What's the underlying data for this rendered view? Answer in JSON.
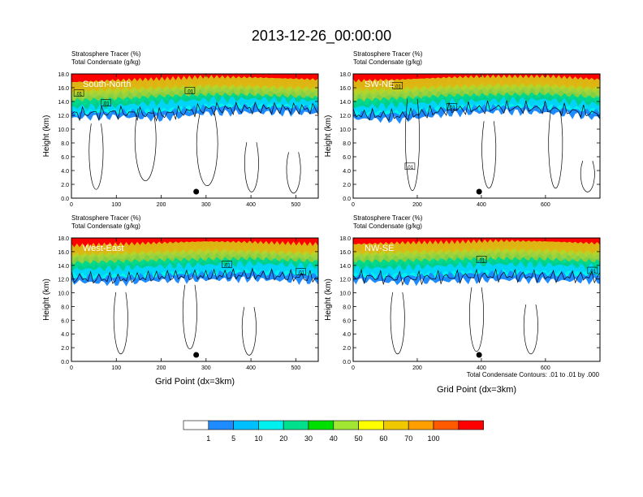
{
  "title": "2013-12-26_00:00:00",
  "label_line1": "Stratosphere Tracer   (%)",
  "label_line2": "Total Condensate   (g/kg)",
  "ylabel": "Height (km)",
  "xlabel": "Grid Point (dx=3km)",
  "contour_note": "Total Condensate Contours: .01 to .01 by .000",
  "contour_label": ".01",
  "colors": {
    "levels": [
      "#ffffff",
      "#1e8cff",
      "#00bfff",
      "#00f0f0",
      "#00e08c",
      "#00e000",
      "#a0e632",
      "#ffff00",
      "#f0c800",
      "#ffa000",
      "#ff5a00",
      "#ff0000"
    ],
    "contour": "#000000",
    "label_text": "#ffffff",
    "surface_dot": "#000000"
  },
  "chart_data": [
    {
      "type": "contour-cross-section",
      "section": "South-North",
      "xlim": [
        0,
        550
      ],
      "xticks": [
        "0",
        "100",
        "200",
        "300",
        "400",
        "500"
      ],
      "ylim": [
        0,
        18
      ],
      "yticks": [
        "0.0",
        "2.0",
        "4.0",
        "6.0",
        "8.0",
        "10.0",
        "12.0",
        "14.0",
        "16.0",
        "18.0"
      ],
      "tracer_bands_km": {
        "x": [
          0,
          100,
          200,
          300,
          400,
          550
        ],
        "c1": [
          11.6,
          11.8,
          11.5,
          12.3,
          12.4,
          12.3
        ],
        "c10": [
          12.3,
          12.5,
          12.5,
          13.2,
          13.3,
          13.1
        ],
        "c30": [
          13.2,
          13.4,
          13.9,
          14.3,
          14.4,
          14.1
        ],
        "c50": [
          14.6,
          14.8,
          15.2,
          15.4,
          15.4,
          15.0
        ],
        "c70": [
          16.0,
          16.3,
          16.5,
          16.8,
          16.7,
          16.4
        ]
      },
      "surface_point_x": 278
    },
    {
      "type": "contour-cross-section",
      "section": "SW-NE",
      "xlim": [
        0,
        770
      ],
      "xticks": [
        "0",
        "200",
        "400",
        "600"
      ],
      "ylim": [
        0,
        18
      ],
      "yticks": [
        "0.0",
        "2.0",
        "4.0",
        "6.0",
        "8.0",
        "10.0",
        "12.0",
        "14.0",
        "16.0",
        "18.0"
      ],
      "tracer_bands_km": {
        "x": [
          0,
          150,
          300,
          450,
          600,
          770
        ],
        "c1": [
          11.5,
          11.3,
          12.2,
          12.5,
          12.4,
          11.6
        ],
        "c10": [
          12.2,
          12.3,
          13.0,
          13.2,
          13.2,
          12.5
        ],
        "c30": [
          13.2,
          13.6,
          14.0,
          14.2,
          14.3,
          13.6
        ],
        "c50": [
          14.6,
          14.9,
          15.3,
          15.4,
          15.5,
          15.0
        ],
        "c70": [
          16.2,
          16.4,
          16.7,
          16.9,
          16.9,
          16.4
        ]
      },
      "surface_point_x": 393
    },
    {
      "type": "contour-cross-section",
      "section": "West-East",
      "xlim": [
        0,
        550
      ],
      "xticks": [
        "0",
        "100",
        "200",
        "300",
        "400",
        "500"
      ],
      "ylim": [
        0,
        18
      ],
      "yticks": [
        "0.0",
        "2.0",
        "4.0",
        "6.0",
        "8.0",
        "10.0",
        "12.0",
        "14.0",
        "16.0",
        "18.0"
      ],
      "tracer_bands_km": {
        "x": [
          0,
          100,
          200,
          300,
          400,
          550
        ],
        "c1": [
          11.6,
          11.4,
          11.8,
          11.9,
          12.0,
          11.6
        ],
        "c10": [
          12.4,
          12.3,
          12.6,
          12.8,
          13.0,
          12.6
        ],
        "c30": [
          13.4,
          13.6,
          13.9,
          14.1,
          14.3,
          13.9
        ],
        "c50": [
          14.8,
          15.0,
          15.2,
          15.3,
          15.4,
          15.0
        ],
        "c70": [
          16.1,
          16.3,
          16.5,
          16.7,
          16.6,
          16.3
        ]
      },
      "surface_point_x": 278
    },
    {
      "type": "contour-cross-section",
      "section": "NW-SE",
      "xlim": [
        0,
        770
      ],
      "xticks": [
        "0",
        "200",
        "400",
        "600"
      ],
      "ylim": [
        0,
        18
      ],
      "yticks": [
        "0.0",
        "2.0",
        "4.0",
        "6.0",
        "8.0",
        "10.0",
        "12.0",
        "14.0",
        "16.0",
        "18.0"
      ],
      "tracer_bands_km": {
        "x": [
          0,
          150,
          300,
          450,
          600,
          770
        ],
        "c1": [
          11.8,
          11.5,
          11.7,
          11.9,
          11.8,
          11.7
        ],
        "c10": [
          12.5,
          12.4,
          12.7,
          12.9,
          12.8,
          12.6
        ],
        "c30": [
          13.6,
          13.7,
          14.0,
          14.2,
          14.1,
          13.8
        ],
        "c50": [
          15.0,
          15.1,
          15.3,
          15.4,
          15.3,
          15.0
        ],
        "c70": [
          16.3,
          16.5,
          16.6,
          16.8,
          16.7,
          16.4
        ]
      },
      "surface_point_x": 393
    }
  ],
  "colorbar": {
    "labels": [
      "1",
      "5",
      "10",
      "20",
      "30",
      "40",
      "50",
      "60",
      "70",
      "100"
    ]
  }
}
